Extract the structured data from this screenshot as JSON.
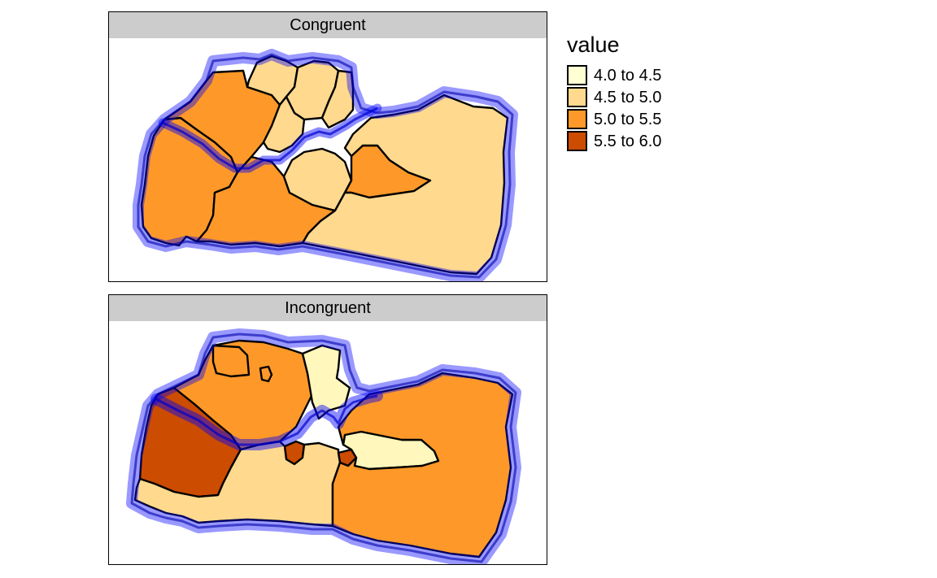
{
  "legend": {
    "title": "value",
    "items": [
      {
        "label": "4.0 to 4.5",
        "color": "#ffffd4"
      },
      {
        "label": "4.5 to 5.0",
        "color": "#fed98e"
      },
      {
        "label": "5.0 to 5.5",
        "color": "#fe9929"
      },
      {
        "label": "5.5 to 6.0",
        "color": "#cc4c02"
      }
    ]
  },
  "panels": [
    {
      "title": "Congruent"
    },
    {
      "title": "Incongruent"
    }
  ],
  "colors": {
    "light": "#fff7bc",
    "mid": "#fed98e",
    "orange": "#fe9929",
    "dark": "#cc4c02",
    "overlay": "#0000ff",
    "header_bg": "#cccccc"
  }
}
